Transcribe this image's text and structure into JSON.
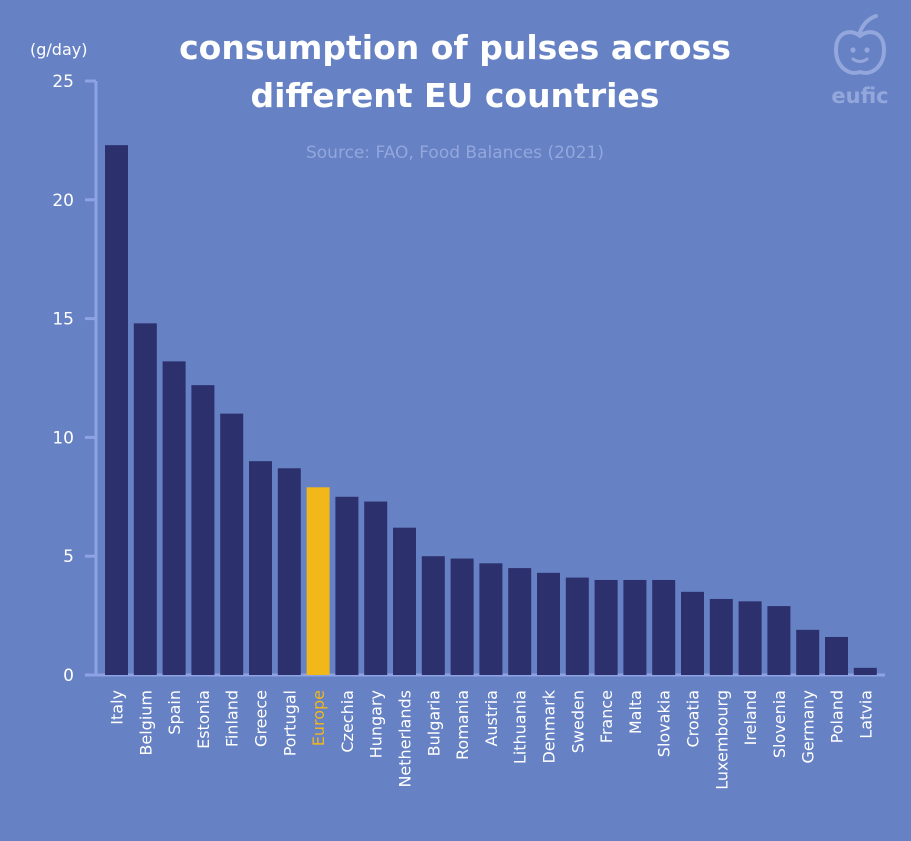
{
  "chart_data": {
    "type": "bar",
    "title_lines": [
      "consumption of pulses across",
      "different EU countries"
    ],
    "subtitle": "Source: FAO, Food Balances (2021)",
    "ylabel": "(g/day)",
    "xlabel": "",
    "ylim": [
      0,
      25
    ],
    "yticks": [
      0,
      5,
      10,
      15,
      20,
      25
    ],
    "categories": [
      "Italy",
      "Belgium",
      "Spain",
      "Estonia",
      "Finland",
      "Greece",
      "Portugal",
      "Europe",
      "Czechia",
      "Hungary",
      "Netherlands",
      "Bulgaria",
      "Romania",
      "Austria",
      "Lithuania",
      "Denmark",
      "Sweden",
      "France",
      "Malta",
      "Slovakia",
      "Croatia",
      "Luxembourg",
      "Ireland",
      "Slovenia",
      "Germany",
      "Poland",
      "Latvia"
    ],
    "values": [
      22.3,
      14.8,
      13.2,
      12.2,
      11.0,
      9.0,
      8.7,
      7.9,
      7.5,
      7.3,
      6.2,
      5.0,
      4.9,
      4.7,
      4.5,
      4.3,
      4.1,
      4.0,
      4.0,
      4.0,
      3.5,
      3.2,
      3.1,
      2.9,
      1.9,
      1.6,
      0.3
    ],
    "highlight": "Europe",
    "grid": false,
    "colors": {
      "bar": "#2c316d",
      "highlight": "#f2b81a",
      "axis": "#8ea3e4",
      "text": "#ffffff",
      "background": "#6681c4",
      "subtle": "#93a7dd"
    }
  },
  "logo": {
    "text": "eufic",
    "icon": "apple-face-icon"
  }
}
